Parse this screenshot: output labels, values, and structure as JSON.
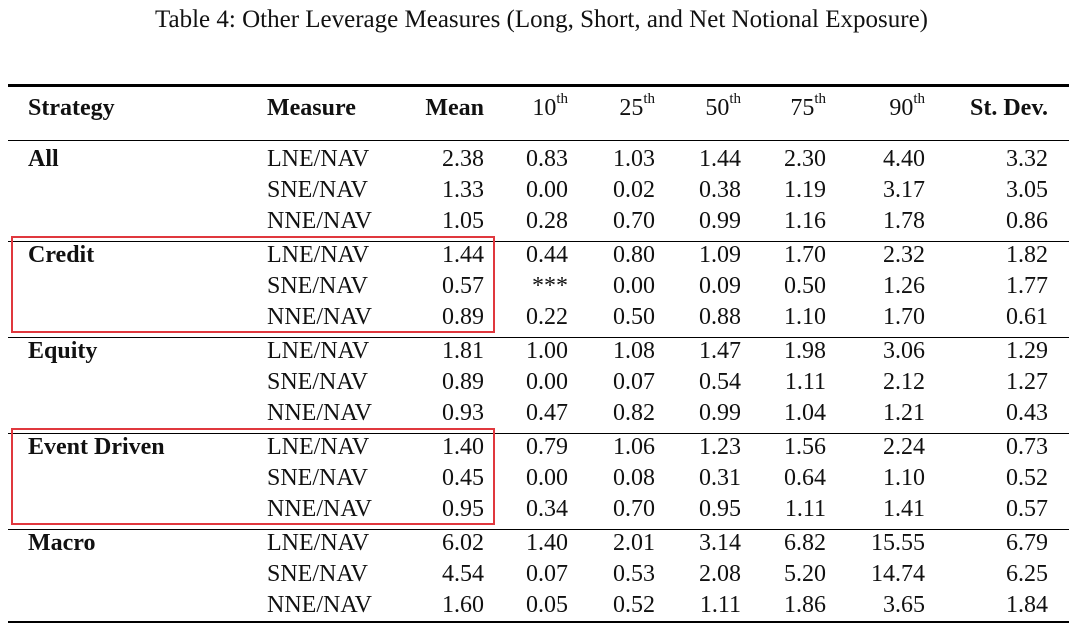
{
  "caption": "Table 4: Other Leverage Measures (Long, Short, and Net Notional Exposure)",
  "header": {
    "strategy": "Strategy",
    "measure": "Measure",
    "mean": "Mean",
    "p10": {
      "base": "10",
      "sup": "th"
    },
    "p25": {
      "base": "25",
      "sup": "th"
    },
    "p50": {
      "base": "50",
      "sup": "th"
    },
    "p75": {
      "base": "75",
      "sup": "th"
    },
    "p90": {
      "base": "90",
      "sup": "th"
    },
    "stdev": "St. Dev."
  },
  "groups": [
    {
      "strategy": "All",
      "highlighted": false,
      "rows": [
        {
          "measure": "LNE/NAV",
          "mean": "2.38",
          "p10": "0.83",
          "p25": "1.03",
          "p50": "1.44",
          "p75": "2.30",
          "p90": "4.40",
          "stdev": "3.32"
        },
        {
          "measure": "SNE/NAV",
          "mean": "1.33",
          "p10": "0.00",
          "p25": "0.02",
          "p50": "0.38",
          "p75": "1.19",
          "p90": "3.17",
          "stdev": "3.05"
        },
        {
          "measure": "NNE/NAV",
          "mean": "1.05",
          "p10": "0.28",
          "p25": "0.70",
          "p50": "0.99",
          "p75": "1.16",
          "p90": "1.78",
          "stdev": "0.86"
        }
      ]
    },
    {
      "strategy": "Credit",
      "highlighted": true,
      "rows": [
        {
          "measure": "LNE/NAV",
          "mean": "1.44",
          "p10": "0.44",
          "p25": "0.80",
          "p50": "1.09",
          "p75": "1.70",
          "p90": "2.32",
          "stdev": "1.82"
        },
        {
          "measure": "SNE/NAV",
          "mean": "0.57",
          "p10": "***",
          "p25": "0.00",
          "p50": "0.09",
          "p75": "0.50",
          "p90": "1.26",
          "stdev": "1.77"
        },
        {
          "measure": "NNE/NAV",
          "mean": "0.89",
          "p10": "0.22",
          "p25": "0.50",
          "p50": "0.88",
          "p75": "1.10",
          "p90": "1.70",
          "stdev": "0.61"
        }
      ]
    },
    {
      "strategy": "Equity",
      "highlighted": false,
      "rows": [
        {
          "measure": "LNE/NAV",
          "mean": "1.81",
          "p10": "1.00",
          "p25": "1.08",
          "p50": "1.47",
          "p75": "1.98",
          "p90": "3.06",
          "stdev": "1.29"
        },
        {
          "measure": "SNE/NAV",
          "mean": "0.89",
          "p10": "0.00",
          "p25": "0.07",
          "p50": "0.54",
          "p75": "1.11",
          "p90": "2.12",
          "stdev": "1.27"
        },
        {
          "measure": "NNE/NAV",
          "mean": "0.93",
          "p10": "0.47",
          "p25": "0.82",
          "p50": "0.99",
          "p75": "1.04",
          "p90": "1.21",
          "stdev": "0.43"
        }
      ]
    },
    {
      "strategy": "Event Driven",
      "highlighted": true,
      "rows": [
        {
          "measure": "LNE/NAV",
          "mean": "1.40",
          "p10": "0.79",
          "p25": "1.06",
          "p50": "1.23",
          "p75": "1.56",
          "p90": "2.24",
          "stdev": "0.73"
        },
        {
          "measure": "SNE/NAV",
          "mean": "0.45",
          "p10": "0.00",
          "p25": "0.08",
          "p50": "0.31",
          "p75": "0.64",
          "p90": "1.10",
          "stdev": "0.52"
        },
        {
          "measure": "NNE/NAV",
          "mean": "0.95",
          "p10": "0.34",
          "p25": "0.70",
          "p50": "0.95",
          "p75": "1.11",
          "p90": "1.41",
          "stdev": "0.57"
        }
      ]
    },
    {
      "strategy": "Macro",
      "highlighted": false,
      "rows": [
        {
          "measure": "LNE/NAV",
          "mean": "6.02",
          "p10": "1.40",
          "p25": "2.01",
          "p50": "3.14",
          "p75": "6.82",
          "p90": "15.55",
          "stdev": "6.79"
        },
        {
          "measure": "SNE/NAV",
          "mean": "4.54",
          "p10": "0.07",
          "p25": "0.53",
          "p50": "2.08",
          "p75": "5.20",
          "p90": "14.74",
          "stdev": "6.25"
        },
        {
          "measure": "NNE/NAV",
          "mean": "1.60",
          "p10": "0.05",
          "p25": "0.52",
          "p50": "1.11",
          "p75": "1.86",
          "p90": "3.65",
          "stdev": "1.84"
        }
      ]
    }
  ],
  "colors": {
    "highlight_border": "#e0383e",
    "rule": "#000000"
  }
}
